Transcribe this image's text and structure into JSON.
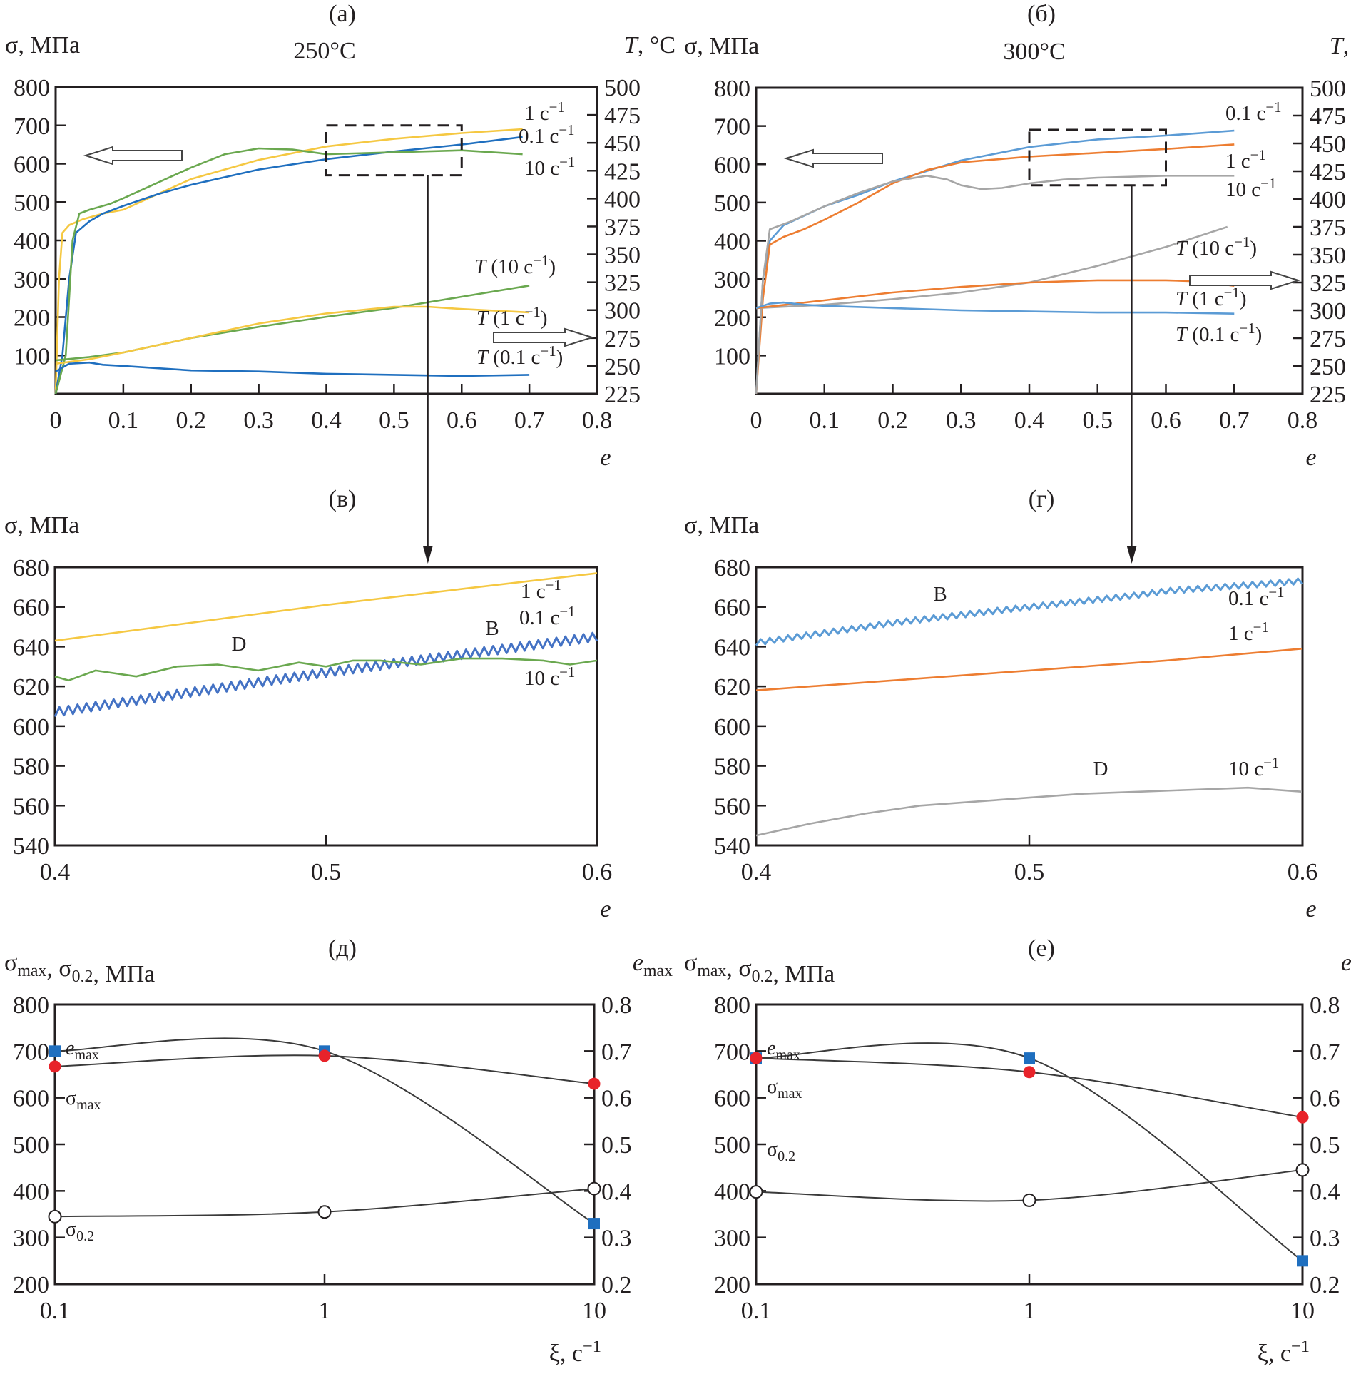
{
  "figure": {
    "panels": [
      "а",
      "б",
      "в",
      "г",
      "д",
      "е"
    ]
  },
  "chart_data": [
    {
      "id": "a",
      "panel_label": "(а)",
      "type": "line",
      "title": "250°C",
      "xlabel": "e",
      "ylabel": "σ, МПа",
      "y2label": "T, °C",
      "xlim": [
        0,
        0.8
      ],
      "ylim": [
        0,
        800
      ],
      "y2lim": [
        225,
        500
      ],
      "xticks": [
        "0",
        "0.1",
        "0.2",
        "0.3",
        "0.4",
        "0.5",
        "0.6",
        "0.7",
        "0.8"
      ],
      "yticks": [
        "100",
        "200",
        "300",
        "400",
        "500",
        "600",
        "700",
        "800"
      ],
      "y2ticks": [
        "225",
        "250",
        "275",
        "300",
        "325",
        "350",
        "375",
        "400",
        "425",
        "450",
        "475",
        "500"
      ],
      "zoom_box": {
        "x": [
          0.4,
          0.6
        ],
        "y": [
          570,
          700
        ]
      },
      "series": [
        {
          "name": "1 c⁻¹",
          "label_main": "1 c",
          "axis": "left",
          "color": "#f5c842",
          "x": [
            0,
            0.005,
            0.01,
            0.02,
            0.04,
            0.07,
            0.1,
            0.15,
            0.2,
            0.3,
            0.4,
            0.5,
            0.6,
            0.69
          ],
          "y": [
            0,
            300,
            420,
            440,
            455,
            470,
            480,
            520,
            560,
            610,
            645,
            665,
            680,
            690
          ]
        },
        {
          "name": "0.1 c⁻¹",
          "label_main": "0.1 c",
          "axis": "left",
          "color": "#1f6fbf",
          "x": [
            0,
            0.01,
            0.02,
            0.03,
            0.05,
            0.07,
            0.1,
            0.15,
            0.2,
            0.3,
            0.4,
            0.5,
            0.6,
            0.69
          ],
          "y": [
            0,
            100,
            300,
            420,
            450,
            470,
            490,
            520,
            545,
            585,
            612,
            632,
            650,
            670
          ]
        },
        {
          "name": "10 c⁻¹",
          "label_main": "10 c",
          "axis": "left",
          "color": "#6aa84f",
          "x": [
            0,
            0.015,
            0.025,
            0.035,
            0.05,
            0.08,
            0.1,
            0.15,
            0.2,
            0.25,
            0.3,
            0.35,
            0.4,
            0.5,
            0.6,
            0.69
          ],
          "y": [
            0,
            100,
            400,
            470,
            480,
            495,
            510,
            550,
            590,
            625,
            640,
            637,
            625,
            630,
            635,
            625
          ]
        },
        {
          "name": "T (10 c⁻¹)",
          "label_main": "T (10 c",
          "axis": "right",
          "color": "#6aa84f",
          "x": [
            0,
            0.05,
            0.1,
            0.2,
            0.3,
            0.4,
            0.5,
            0.6,
            0.7
          ],
          "y": [
            255,
            258,
            262,
            275,
            285,
            294,
            302,
            312,
            322
          ]
        },
        {
          "name": "T (1 c⁻¹)",
          "label_main": "T (1 c",
          "axis": "right",
          "color": "#f5c842",
          "x": [
            0,
            0.05,
            0.1,
            0.2,
            0.3,
            0.4,
            0.5,
            0.55,
            0.6,
            0.7
          ],
          "y": [
            252,
            256,
            262,
            275,
            288,
            297,
            303,
            303,
            301,
            298
          ]
        },
        {
          "name": "T (0.1 c⁻¹)",
          "label_main": "T (0.1 c",
          "axis": "right",
          "color": "#1f6fbf",
          "x": [
            0,
            0.02,
            0.05,
            0.07,
            0.1,
            0.2,
            0.3,
            0.4,
            0.5,
            0.6,
            0.7
          ],
          "y": [
            245,
            252,
            253,
            251,
            250,
            246,
            245,
            243,
            242,
            241,
            242
          ]
        }
      ],
      "arrows": [
        {
          "direction": "left",
          "axis": "σ"
        },
        {
          "direction": "right",
          "axis": "T"
        }
      ]
    },
    {
      "id": "b",
      "panel_label": "(б)",
      "type": "line",
      "title": "300°C",
      "xlabel": "e",
      "ylabel": "σ, МПа",
      "y2label": "T, °C",
      "xlim": [
        0,
        0.8
      ],
      "ylim": [
        0,
        800
      ],
      "y2lim": [
        225,
        500
      ],
      "xticks": [
        "0",
        "0.1",
        "0.2",
        "0.3",
        "0.4",
        "0.5",
        "0.6",
        "0.7",
        "0.8"
      ],
      "yticks": [
        "100",
        "200",
        "300",
        "400",
        "500",
        "600",
        "700",
        "800"
      ],
      "y2ticks": [
        "225",
        "250",
        "275",
        "300",
        "325",
        "350",
        "375",
        "400",
        "425",
        "450",
        "475",
        "500"
      ],
      "zoom_box": {
        "x": [
          0.4,
          0.6
        ],
        "y": [
          545,
          690
        ]
      },
      "series": [
        {
          "name": "0.1 c⁻¹",
          "label_main": "0.1 c",
          "axis": "left",
          "color": "#5b9bd5",
          "x": [
            0,
            0.01,
            0.02,
            0.04,
            0.07,
            0.1,
            0.15,
            0.2,
            0.3,
            0.4,
            0.5,
            0.6,
            0.7
          ],
          "y": [
            0,
            300,
            400,
            440,
            465,
            490,
            520,
            555,
            610,
            645,
            665,
            675,
            688
          ]
        },
        {
          "name": "1 c⁻¹",
          "label_main": "1 c",
          "axis": "left",
          "color": "#ed7d31",
          "x": [
            0,
            0.01,
            0.02,
            0.04,
            0.07,
            0.1,
            0.15,
            0.2,
            0.25,
            0.3,
            0.4,
            0.5,
            0.6,
            0.7
          ],
          "y": [
            0,
            250,
            390,
            410,
            430,
            455,
            500,
            550,
            585,
            605,
            620,
            630,
            640,
            652
          ]
        },
        {
          "name": "10 c⁻¹",
          "label_main": "10 c",
          "axis": "left",
          "color": "#a6a6a6",
          "x": [
            0,
            0.01,
            0.02,
            0.05,
            0.1,
            0.15,
            0.2,
            0.25,
            0.28,
            0.3,
            0.33,
            0.36,
            0.4,
            0.45,
            0.5,
            0.6,
            0.7
          ],
          "y": [
            0,
            300,
            430,
            450,
            490,
            525,
            555,
            570,
            560,
            545,
            535,
            538,
            550,
            560,
            565,
            570,
            570
          ]
        },
        {
          "name": "T (10 c⁻¹)",
          "label_main": "T (10 c",
          "axis": "right",
          "color": "#a6a6a6",
          "x": [
            0,
            0.1,
            0.2,
            0.3,
            0.4,
            0.5,
            0.6,
            0.69
          ],
          "y": [
            302,
            305,
            310,
            316,
            325,
            340,
            357,
            375
          ]
        },
        {
          "name": "T (1 c⁻¹)",
          "label_main": "T (1 c",
          "axis": "right",
          "color": "#ed7d31",
          "x": [
            0,
            0.1,
            0.2,
            0.3,
            0.4,
            0.5,
            0.6,
            0.65,
            0.7
          ],
          "y": [
            302,
            309,
            316,
            321,
            325,
            327,
            327,
            326,
            322
          ]
        },
        {
          "name": "T (0.1 c⁻¹)",
          "label_main": "T (0.1 c",
          "axis": "right",
          "color": "#5b9bd5",
          "x": [
            0,
            0.02,
            0.04,
            0.07,
            0.1,
            0.2,
            0.3,
            0.4,
            0.5,
            0.6,
            0.7
          ],
          "y": [
            302,
            306,
            307,
            305,
            304,
            302,
            300,
            299,
            298,
            298,
            297
          ]
        }
      ],
      "arrows": [
        {
          "direction": "left",
          "axis": "σ"
        },
        {
          "direction": "right",
          "axis": "T"
        }
      ]
    },
    {
      "id": "v",
      "panel_label": "(в)",
      "type": "line",
      "xlabel": "e",
      "ylabel": "σ, МПа",
      "xlim": [
        0.4,
        0.6
      ],
      "ylim": [
        540,
        680
      ],
      "xticks": [
        "0.4",
        "0.5",
        "0.6"
      ],
      "yticks": [
        "540",
        "560",
        "580",
        "600",
        "620",
        "640",
        "660",
        "680"
      ],
      "annotations": [
        "D",
        "B"
      ],
      "series": [
        {
          "name": "1 c⁻¹",
          "label_main": "1 c",
          "color": "#f5c842",
          "serration": "none",
          "x": [
            0.4,
            0.45,
            0.5,
            0.55,
            0.6
          ],
          "y": [
            643,
            652,
            661,
            669,
            677
          ]
        },
        {
          "name": "0.1 c⁻¹",
          "label_main": "0.1 c",
          "color": "#4472c4",
          "serration": "B",
          "x": [
            0.4,
            0.45,
            0.5,
            0.55,
            0.6
          ],
          "y": [
            607,
            617,
            627,
            636,
            645
          ]
        },
        {
          "name": "10 c⁻¹",
          "label_main": "10 c",
          "color": "#6aa84f",
          "serration": "D",
          "x": [
            0.4,
            0.405,
            0.415,
            0.43,
            0.445,
            0.46,
            0.475,
            0.49,
            0.5,
            0.51,
            0.52,
            0.535,
            0.55,
            0.565,
            0.58,
            0.59,
            0.6
          ],
          "y": [
            625,
            623,
            628,
            625,
            630,
            631,
            628,
            632,
            630,
            633,
            633,
            631,
            634,
            634,
            633,
            631,
            633
          ]
        }
      ]
    },
    {
      "id": "g",
      "panel_label": "(г)",
      "type": "line",
      "xlabel": "e",
      "ylabel": "σ, МПа",
      "xlim": [
        0.4,
        0.6
      ],
      "ylim": [
        540,
        680
      ],
      "xticks": [
        "0.4",
        "0.5",
        "0.6"
      ],
      "yticks": [
        "540",
        "560",
        "580",
        "600",
        "620",
        "640",
        "660",
        "680"
      ],
      "annotations": [
        "B",
        "D"
      ],
      "series": [
        {
          "name": "0.1 c⁻¹",
          "label_main": "0.1 c",
          "color": "#5b9bd5",
          "serration": "B",
          "x": [
            0.4,
            0.45,
            0.5,
            0.54,
            0.55,
            0.6
          ],
          "y": [
            642,
            652,
            660,
            666,
            668,
            673
          ]
        },
        {
          "name": "1 c⁻¹",
          "label_main": "1 c",
          "color": "#ed7d31",
          "serration": "none",
          "x": [
            0.4,
            0.45,
            0.5,
            0.55,
            0.6
          ],
          "y": [
            618,
            623,
            628,
            633,
            639
          ]
        },
        {
          "name": "10 c⁻¹",
          "label_main": "10 c",
          "color": "#a6a6a6",
          "serration": "D",
          "x": [
            0.4,
            0.41,
            0.42,
            0.44,
            0.46,
            0.48,
            0.5,
            0.52,
            0.54,
            0.56,
            0.58,
            0.6
          ],
          "y": [
            545,
            548,
            551,
            556,
            560,
            562,
            564,
            566,
            567,
            568,
            569,
            567
          ]
        }
      ]
    },
    {
      "id": "d",
      "panel_label": "(д)",
      "type": "scatter",
      "xlabel": "ξ, c⁻¹",
      "ylabel": "σmax, σ0.2, МПа",
      "y2label": "emax",
      "xscale": "log",
      "xlim": [
        0.1,
        10
      ],
      "ylim": [
        200,
        800
      ],
      "y2lim": [
        0.2,
        0.8
      ],
      "xticks": [
        "0.1",
        "1",
        "10"
      ],
      "yticks": [
        "200",
        "300",
        "400",
        "500",
        "600",
        "700",
        "800"
      ],
      "y2ticks": [
        "0.2",
        "0.3",
        "0.4",
        "0.5",
        "0.6",
        "0.7",
        "0.8"
      ],
      "series": [
        {
          "name": "emax",
          "axis": "right",
          "marker": "square",
          "color": "#1f6fbf",
          "x": [
            0.1,
            1,
            10
          ],
          "y": [
            0.7,
            0.7,
            0.33
          ]
        },
        {
          "name": "σmax",
          "axis": "left",
          "marker": "filled-circle",
          "color": "#e8232a",
          "x": [
            0.1,
            1,
            10
          ],
          "y": [
            667,
            690,
            630
          ]
        },
        {
          "name": "σ0.2",
          "axis": "left",
          "marker": "open-circle",
          "color": "#231f20",
          "x": [
            0.1,
            1,
            10
          ],
          "y": [
            345,
            355,
            405
          ]
        }
      ]
    },
    {
      "id": "e",
      "panel_label": "(е)",
      "type": "scatter",
      "xlabel": "ξ, c⁻¹",
      "ylabel": "σmax, σ0.2, МПа",
      "y2label": "emax",
      "xscale": "log",
      "xlim": [
        0.1,
        10
      ],
      "ylim": [
        200,
        800
      ],
      "y2lim": [
        0.2,
        0.8
      ],
      "xticks": [
        "0.1",
        "1",
        "10"
      ],
      "yticks": [
        "200",
        "300",
        "400",
        "500",
        "600",
        "700",
        "800"
      ],
      "y2ticks": [
        "0.2",
        "0.3",
        "0.4",
        "0.5",
        "0.6",
        "0.7",
        "0.8"
      ],
      "series": [
        {
          "name": "emax",
          "axis": "right",
          "marker": "square",
          "color": "#1f6fbf",
          "x": [
            0.1,
            1,
            10
          ],
          "y": [
            0.685,
            0.685,
            0.25
          ]
        },
        {
          "name": "σmax",
          "axis": "left",
          "marker": "filled-circle",
          "color": "#e8232a",
          "x": [
            0.1,
            1,
            10
          ],
          "y": [
            685,
            655,
            558
          ]
        },
        {
          "name": "σ0.2",
          "axis": "left",
          "marker": "open-circle",
          "color": "#231f20",
          "x": [
            0.1,
            1,
            10
          ],
          "y": [
            398,
            380,
            445
          ]
        }
      ]
    }
  ]
}
